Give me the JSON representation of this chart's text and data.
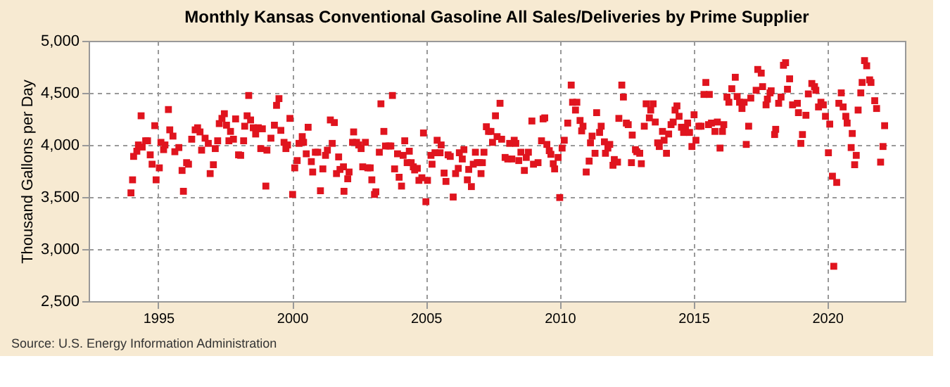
{
  "chart_data": {
    "type": "scatter",
    "title": "Monthly Kansas Conventional Gasoline All Sales/Deliveries by Prime Supplier",
    "ylabel": "Thousand Gallons per Day",
    "annotations": [
      "Source: U.S. Energy Information Administration"
    ],
    "x": [
      1993.98,
      1994.04,
      1994.08,
      1994.2,
      1994.26,
      1994.36,
      1994.4,
      1994.53,
      1994.6,
      1994.7,
      1994.77,
      1994.87,
      1994.92,
      1995.04,
      1995.1,
      1995.2,
      1995.25,
      1995.38,
      1995.43,
      1995.55,
      1995.62,
      1995.77,
      1995.89,
      1995.94,
      1996.06,
      1996.13,
      1996.25,
      1996.38,
      1996.47,
      1996.56,
      1996.62,
      1996.75,
      1996.87,
      1996.94,
      1997.06,
      1997.13,
      1997.22,
      1997.28,
      1997.38,
      1997.47,
      1997.55,
      1997.64,
      1997.7,
      1997.81,
      1997.89,
      1998.0,
      1998.08,
      1998.19,
      1998.23,
      1998.32,
      1998.38,
      1998.45,
      1998.55,
      1998.64,
      1998.74,
      1998.83,
      1998.89,
      1999.02,
      1999.06,
      1999.21,
      1999.34,
      1999.42,
      1999.51,
      1999.58,
      1999.7,
      1999.77,
      1999.83,
      1999.92,
      2000.02,
      2000.1,
      2000.19,
      2000.26,
      2000.38,
      2000.43,
      2000.53,
      2000.6,
      2000.72,
      2000.77,
      2000.87,
      2000.96,
      2001.06,
      2001.15,
      2001.25,
      2001.32,
      2001.43,
      2001.5,
      2001.58,
      2001.66,
      2001.74,
      2001.79,
      2001.92,
      2001.94,
      2002.08,
      2002.13,
      2002.26,
      2002.3,
      2002.41,
      2002.49,
      2002.58,
      2002.64,
      2002.74,
      2002.83,
      2002.92,
      2002.98,
      2003.08,
      2003.13,
      2003.26,
      2003.32,
      2003.43,
      2003.49,
      2003.62,
      2003.69,
      2003.75,
      2003.83,
      2003.94,
      2004.0,
      2004.09,
      2004.15,
      2004.21,
      2004.3,
      2004.38,
      2004.45,
      2004.53,
      2004.58,
      2004.68,
      2004.74,
      2004.85,
      2004.91,
      2005.0,
      2005.06,
      2005.19,
      2005.23,
      2005.34,
      2005.42,
      2005.53,
      2005.57,
      2005.68,
      2005.75,
      2005.83,
      2005.91,
      2006.02,
      2006.11,
      2006.21,
      2006.25,
      2006.36,
      2006.42,
      2006.55,
      2006.6,
      2006.7,
      2006.77,
      2006.85,
      2006.92,
      2007.0,
      2007.06,
      2007.11,
      2007.17,
      2007.26,
      2007.34,
      2007.43,
      2007.49,
      2007.6,
      2007.66,
      2007.77,
      2007.83,
      2007.96,
      2008.06,
      2008.13,
      2008.21,
      2008.3,
      2008.36,
      2008.47,
      2008.55,
      2008.68,
      2008.75,
      2008.83,
      2008.96,
      2009.02,
      2009.19,
      2009.32,
      2009.38,
      2009.44,
      2009.52,
      2009.61,
      2009.67,
      2009.76,
      2009.81,
      2009.94,
      2010.0,
      2010.09,
      2010.17,
      2010.3,
      2010.43,
      2010.48,
      2010.59,
      2010.64,
      2010.76,
      2010.82,
      2010.87,
      2010.99,
      2011.1,
      2011.15,
      2011.21,
      2011.32,
      2011.38,
      2011.49,
      2011.55,
      2011.67,
      2011.71,
      2011.8,
      2011.87,
      2011.99,
      2012.04,
      2012.16,
      2012.21,
      2012.32,
      2012.38,
      2012.49,
      2012.56,
      2012.68,
      2012.71,
      2012.83,
      2012.88,
      2012.99,
      2013.05,
      2013.16,
      2013.23,
      2013.35,
      2013.4,
      2013.49,
      2013.57,
      2013.66,
      2013.72,
      2013.84,
      2013.9,
      2013.99,
      2014.07,
      2014.16,
      2014.24,
      2014.31,
      2014.38,
      2014.46,
      2014.55,
      2014.63,
      2014.7,
      2014.78,
      2014.85,
      2014.94,
      2015.02,
      2015.09,
      2015.2,
      2015.28,
      2015.39,
      2015.46,
      2015.56,
      2015.59,
      2015.67,
      2015.8,
      2015.89,
      2015.99,
      2016.08,
      2016.13,
      2016.25,
      2016.32,
      2016.43,
      2016.56,
      2016.63,
      2016.72,
      2016.81,
      2016.89,
      2016.97,
      2017.06,
      2017.14,
      2017.34,
      2017.4,
      2017.53,
      2017.58,
      2017.71,
      2017.76,
      2017.86,
      2017.9,
      2018.03,
      2018.07,
      2018.18,
      2018.27,
      2018.36,
      2018.44,
      2018.51,
      2018.59,
      2018.7,
      2018.88,
      2018.92,
      2019.01,
      2019.07,
      2019.2,
      2019.29,
      2019.42,
      2019.52,
      2019.57,
      2019.67,
      2019.76,
      2019.85,
      2019.93,
      2020.04,
      2020.09,
      2020.19,
      2020.24,
      2020.35,
      2020.43,
      2020.52,
      2020.59,
      2020.69,
      2020.74,
      2020.89,
      2020.93,
      2021.02,
      2021.08,
      2021.15,
      2021.25,
      2021.3,
      2021.39,
      2021.47,
      2021.58,
      2021.63,
      2021.77,
      2021.84,
      2021.99,
      2022.08,
      2022.14
    ],
    "values": [
      3540,
      3665,
      3890,
      3940,
      4000,
      4280,
      3980,
      4040,
      4040,
      3905,
      3815,
      4185,
      3665,
      3780,
      4025,
      3955,
      4000,
      4340,
      4145,
      4085,
      3935,
      3975,
      3755,
      3555,
      3830,
      3815,
      4055,
      4145,
      4165,
      4125,
      3950,
      4065,
      4015,
      3725,
      3810,
      3965,
      4040,
      4205,
      4255,
      4300,
      4190,
      4040,
      4130,
      4055,
      4250,
      3905,
      3900,
      4040,
      4180,
      4280,
      4475,
      4240,
      4165,
      4105,
      4165,
      3965,
      4155,
      3605,
      3950,
      4065,
      4190,
      4380,
      4445,
      4140,
      4025,
      3965,
      4000,
      4255,
      3525,
      3780,
      3850,
      4015,
      4080,
      4025,
      3915,
      4170,
      3840,
      3740,
      3930,
      3930,
      3560,
      3770,
      3900,
      3950,
      4240,
      4015,
      4215,
      3725,
      3885,
      3765,
      3790,
      3555,
      3675,
      3740,
      4025,
      4125,
      4025,
      4000,
      3965,
      3790,
      4025,
      3780,
      3780,
      3665,
      3525,
      3550,
      3930,
      4395,
      4130,
      3990,
      3990,
      3990,
      4475,
      3770,
      3915,
      3690,
      3605,
      3900,
      4040,
      3830,
      3940,
      3830,
      3790,
      3760,
      3775,
      3660,
      3685,
      4115,
      3455,
      3660,
      3900,
      3815,
      3925,
      4045,
      3925,
      4000,
      3730,
      3650,
      3905,
      3890,
      3500,
      3725,
      3775,
      3925,
      3865,
      3955,
      3665,
      3765,
      3600,
      3815,
      3930,
      3830,
      3830,
      3725,
      3830,
      3930,
      4175,
      4130,
      4130,
      4025,
      4280,
      4080,
      4400,
      4055,
      3880,
      3865,
      4015,
      3865,
      4045,
      4015,
      3850,
      3930,
      3755,
      3880,
      3930,
      4230,
      3815,
      3830,
      4040,
      4250,
      4260,
      4005,
      3945,
      3910,
      3820,
      3770,
      3880,
      3495,
      3970,
      4045,
      4210,
      4575,
      4410,
      4335,
      4410,
      4235,
      4135,
      4180,
      3740,
      3845,
      4020,
      4085,
      3920,
      4310,
      4120,
      4180,
      4030,
      3920,
      3970,
      4005,
      3805,
      3860,
      3835,
      4255,
      4575,
      4460,
      4210,
      4195,
      3830,
      4095,
      3955,
      3935,
      3920,
      3820,
      4180,
      4395,
      4260,
      4335,
      4395,
      4220,
      4020,
      3985,
      4130,
      4045,
      3920,
      4105,
      4195,
      4220,
      4335,
      4375,
      4275,
      4170,
      4120,
      4170,
      4210,
      4120,
      3985,
      4290,
      4045,
      4180,
      4180,
      4485,
      4600,
      4195,
      4485,
      4210,
      4130,
      4220,
      3970,
      4130,
      4195,
      4460,
      4410,
      4540,
      4650,
      4465,
      4410,
      4350,
      4410,
      4005,
      4180,
      4450,
      4525,
      4725,
      4690,
      4560,
      4385,
      4440,
      4500,
      4520,
      4100,
      4150,
      4400,
      4460,
      4765,
      4790,
      4535,
      4635,
      4385,
      4400,
      4310,
      4015,
      4100,
      4285,
      4490,
      4590,
      4560,
      4525,
      4365,
      4410,
      4385,
      4275,
      3925,
      4200,
      3700,
      2835,
      3640,
      4400,
      4500,
      4365,
      4275,
      4210,
      3975,
      4110,
      3810,
      3900,
      4335,
      4500,
      4600,
      4810,
      4760,
      4625,
      4600,
      4425,
      4350,
      3835,
      3985,
      4185
    ],
    "color": "#e0141e",
    "marker": "square",
    "xlim": [
      1992.4,
      2022.9
    ],
    "xticks": [
      1995,
      2000,
      2005,
      2010,
      2015,
      2020
    ],
    "ylim": [
      2500,
      5000
    ],
    "yticks": [
      {
        "value": 2500,
        "label": "2,500"
      },
      {
        "value": 3000,
        "label": "3,000"
      },
      {
        "value": 3500,
        "label": "3,500"
      },
      {
        "value": 4000,
        "label": "4,000"
      },
      {
        "value": 4500,
        "label": "4,500"
      },
      {
        "value": 5000,
        "label": "5,000"
      }
    ],
    "grid": true
  }
}
